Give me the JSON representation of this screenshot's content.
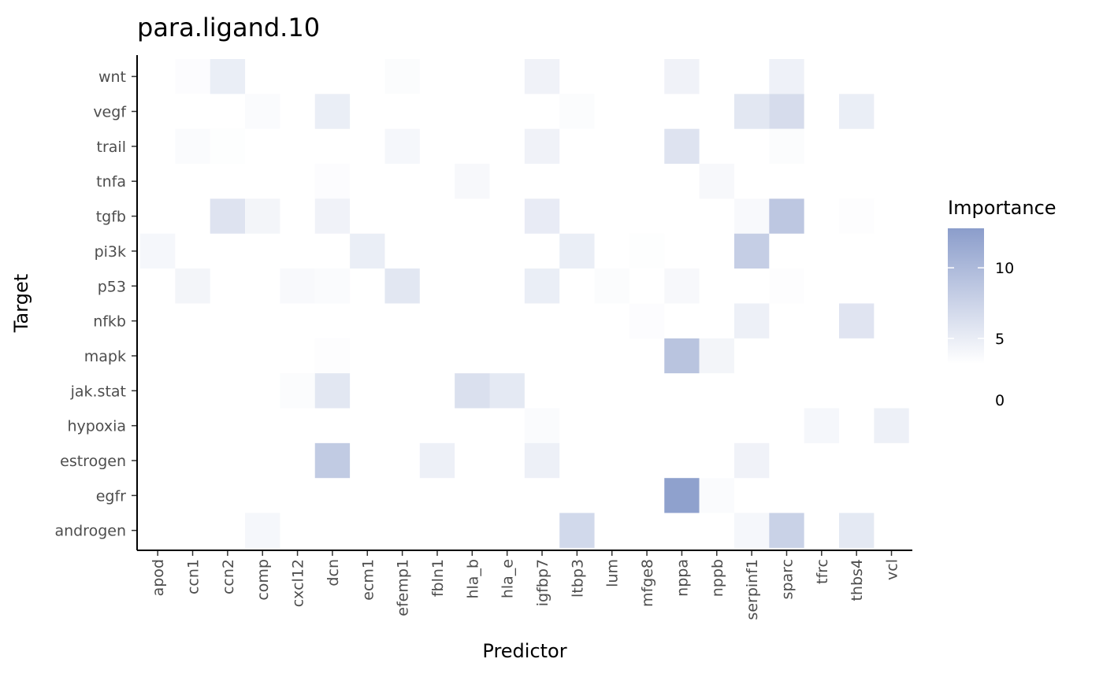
{
  "chart_data": {
    "type": "heatmap",
    "title": "para.ligand.10",
    "xlabel": "Predictor",
    "ylabel": "Target",
    "x_categories": [
      "apod",
      "ccn1",
      "ccn2",
      "comp",
      "cxcl12",
      "dcn",
      "ecm1",
      "efemp1",
      "fbln1",
      "hla_b",
      "hla_e",
      "igfbp7",
      "ltbp3",
      "lum",
      "mfge8",
      "nppa",
      "nppb",
      "serpinf1",
      "sparc",
      "tfrc",
      "thbs4",
      "vcl"
    ],
    "y_categories": [
      "wnt",
      "vegf",
      "trail",
      "tnfa",
      "tgfb",
      "pi3k",
      "p53",
      "nfkb",
      "mapk",
      "jak.stat",
      "hypoxia",
      "estrogen",
      "egfr",
      "androgen"
    ],
    "cells": [
      {
        "target": "wnt",
        "predictor": "ccn1",
        "value": 0.4
      },
      {
        "target": "wnt",
        "predictor": "ccn2",
        "value": 2.5
      },
      {
        "target": "wnt",
        "predictor": "efemp1",
        "value": 0.5
      },
      {
        "target": "wnt",
        "predictor": "igfbp7",
        "value": 1.8
      },
      {
        "target": "wnt",
        "predictor": "nppa",
        "value": 1.8
      },
      {
        "target": "wnt",
        "predictor": "sparc",
        "value": 2.0
      },
      {
        "target": "vegf",
        "predictor": "comp",
        "value": 0.6
      },
      {
        "target": "vegf",
        "predictor": "dcn",
        "value": 2.5
      },
      {
        "target": "vegf",
        "predictor": "ltbp3",
        "value": 0.5
      },
      {
        "target": "vegf",
        "predictor": "serpinf1",
        "value": 3.5
      },
      {
        "target": "vegf",
        "predictor": "sparc",
        "value": 5.0
      },
      {
        "target": "vegf",
        "predictor": "thbs4",
        "value": 2.5
      },
      {
        "target": "trail",
        "predictor": "ccn1",
        "value": 0.6
      },
      {
        "target": "trail",
        "predictor": "ccn2",
        "value": 0.2
      },
      {
        "target": "trail",
        "predictor": "efemp1",
        "value": 1.2
      },
      {
        "target": "trail",
        "predictor": "igfbp7",
        "value": 1.8
      },
      {
        "target": "trail",
        "predictor": "nppa",
        "value": 4.0
      },
      {
        "target": "trail",
        "predictor": "sparc",
        "value": 0.5
      },
      {
        "target": "tnfa",
        "predictor": "dcn",
        "value": 0.4
      },
      {
        "target": "tnfa",
        "predictor": "hla_b",
        "value": 1.0
      },
      {
        "target": "tnfa",
        "predictor": "nppb",
        "value": 1.0
      },
      {
        "target": "tgfb",
        "predictor": "ccn2",
        "value": 4.0
      },
      {
        "target": "tgfb",
        "predictor": "comp",
        "value": 1.5
      },
      {
        "target": "tgfb",
        "predictor": "dcn",
        "value": 1.8
      },
      {
        "target": "tgfb",
        "predictor": "igfbp7",
        "value": 2.8
      },
      {
        "target": "tgfb",
        "predictor": "serpinf1",
        "value": 0.8
      },
      {
        "target": "tgfb",
        "predictor": "sparc",
        "value": 8.0
      },
      {
        "target": "tgfb",
        "predictor": "thbs4",
        "value": 0.3
      },
      {
        "target": "pi3k",
        "predictor": "apod",
        "value": 1.2
      },
      {
        "target": "pi3k",
        "predictor": "ecm1",
        "value": 2.5
      },
      {
        "target": "pi3k",
        "predictor": "ltbp3",
        "value": 2.5
      },
      {
        "target": "pi3k",
        "predictor": "mfge8",
        "value": 0.2
      },
      {
        "target": "pi3k",
        "predictor": "serpinf1",
        "value": 7.0
      },
      {
        "target": "p53",
        "predictor": "ccn1",
        "value": 1.5
      },
      {
        "target": "p53",
        "predictor": "cxcl12",
        "value": 0.8
      },
      {
        "target": "p53",
        "predictor": "dcn",
        "value": 0.6
      },
      {
        "target": "p53",
        "predictor": "efemp1",
        "value": 3.5
      },
      {
        "target": "p53",
        "predictor": "igfbp7",
        "value": 2.5
      },
      {
        "target": "p53",
        "predictor": "lum",
        "value": 0.5
      },
      {
        "target": "p53",
        "predictor": "nppa",
        "value": 1.0
      },
      {
        "target": "p53",
        "predictor": "sparc",
        "value": 0.3
      },
      {
        "target": "nfkb",
        "predictor": "mfge8",
        "value": 0.4
      },
      {
        "target": "nfkb",
        "predictor": "serpinf1",
        "value": 2.2
      },
      {
        "target": "nfkb",
        "predictor": "thbs4",
        "value": 3.8
      },
      {
        "target": "mapk",
        "predictor": "dcn",
        "value": 0.3
      },
      {
        "target": "mapk",
        "predictor": "nppa",
        "value": 8.5
      },
      {
        "target": "mapk",
        "predictor": "nppb",
        "value": 1.5
      },
      {
        "target": "jak.stat",
        "predictor": "cxcl12",
        "value": 0.5
      },
      {
        "target": "jak.stat",
        "predictor": "dcn",
        "value": 3.5
      },
      {
        "target": "jak.stat",
        "predictor": "hla_b",
        "value": 4.5
      },
      {
        "target": "jak.stat",
        "predictor": "hla_e",
        "value": 3.2
      },
      {
        "target": "hypoxia",
        "predictor": "igfbp7",
        "value": 0.6
      },
      {
        "target": "hypoxia",
        "predictor": "tfrc",
        "value": 1.2
      },
      {
        "target": "hypoxia",
        "predictor": "vcl",
        "value": 2.2
      },
      {
        "target": "estrogen",
        "predictor": "dcn",
        "value": 7.5
      },
      {
        "target": "estrogen",
        "predictor": "fbln1",
        "value": 2.2
      },
      {
        "target": "estrogen",
        "predictor": "igfbp7",
        "value": 2.2
      },
      {
        "target": "estrogen",
        "predictor": "serpinf1",
        "value": 1.8
      },
      {
        "target": "egfr",
        "predictor": "nppa",
        "value": 13.5
      },
      {
        "target": "egfr",
        "predictor": "nppb",
        "value": 0.6
      },
      {
        "target": "androgen",
        "predictor": "comp",
        "value": 1.2
      },
      {
        "target": "androgen",
        "predictor": "ltbp3",
        "value": 5.5
      },
      {
        "target": "androgen",
        "predictor": "serpinf1",
        "value": 1.2
      },
      {
        "target": "androgen",
        "predictor": "sparc",
        "value": 6.5
      },
      {
        "target": "androgen",
        "predictor": "thbs4",
        "value": 3.2
      }
    ],
    "legend": {
      "title": "Importance",
      "ticks": [
        0,
        5,
        10
      ],
      "range": [
        0,
        14
      ],
      "placement": "right",
      "low_color": "#ffffff",
      "high_color": "#8b9dcb"
    },
    "grid": false
  }
}
